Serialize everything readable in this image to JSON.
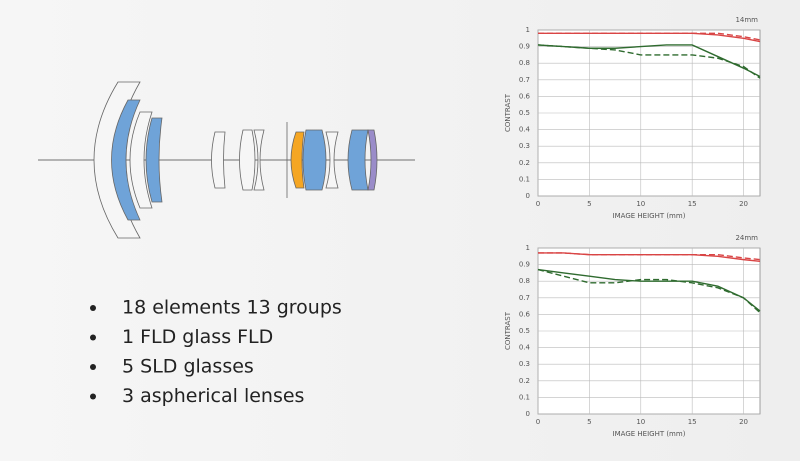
{
  "chart_data": [
    {
      "type": "line",
      "title": "14mm",
      "x_label": "IMAGE HEIGHT (mm)",
      "y_label": "CONTRAST",
      "x": [
        0,
        2.5,
        5,
        7.5,
        10,
        12.5,
        15,
        17.5,
        20,
        21.6
      ],
      "series": [
        {
          "color": "#d94545",
          "dashed": false,
          "values": [
            0.98,
            0.98,
            0.98,
            0.98,
            0.98,
            0.98,
            0.98,
            0.97,
            0.95,
            0.93
          ]
        },
        {
          "color": "#d94545",
          "dashed": true,
          "values": [
            0.98,
            0.98,
            0.98,
            0.98,
            0.98,
            0.98,
            0.98,
            0.98,
            0.96,
            0.94
          ]
        },
        {
          "color": "#2f6b2f",
          "dashed": false,
          "values": [
            0.91,
            0.9,
            0.89,
            0.89,
            0.9,
            0.91,
            0.91,
            0.84,
            0.77,
            0.72
          ]
        },
        {
          "color": "#2f6b2f",
          "dashed": true,
          "values": [
            0.91,
            0.9,
            0.89,
            0.88,
            0.85,
            0.85,
            0.85,
            0.83,
            0.78,
            0.71
          ]
        }
      ],
      "xlim": [
        0,
        21.6
      ],
      "ylim": [
        0,
        1
      ],
      "xticks": [
        0,
        5,
        10,
        15,
        20
      ],
      "yticks": [
        0,
        0.1,
        0.2,
        0.3,
        0.4,
        0.5,
        0.6,
        0.7,
        0.8,
        0.9,
        1
      ],
      "grid": true
    },
    {
      "type": "line",
      "title": "24mm",
      "x_label": "IMAGE HEIGHT (mm)",
      "y_label": "CONTRAST",
      "x": [
        0,
        2.5,
        5,
        7.5,
        10,
        12.5,
        15,
        17.5,
        20,
        21.6
      ],
      "series": [
        {
          "color": "#d94545",
          "dashed": false,
          "values": [
            0.97,
            0.97,
            0.96,
            0.96,
            0.96,
            0.96,
            0.96,
            0.95,
            0.93,
            0.92
          ]
        },
        {
          "color": "#d94545",
          "dashed": true,
          "values": [
            0.97,
            0.97,
            0.96,
            0.96,
            0.96,
            0.96,
            0.96,
            0.96,
            0.94,
            0.93
          ]
        },
        {
          "color": "#2f6b2f",
          "dashed": false,
          "values": [
            0.87,
            0.85,
            0.83,
            0.81,
            0.8,
            0.8,
            0.8,
            0.77,
            0.7,
            0.62
          ]
        },
        {
          "color": "#2f6b2f",
          "dashed": true,
          "values": [
            0.87,
            0.83,
            0.79,
            0.79,
            0.81,
            0.81,
            0.79,
            0.76,
            0.7,
            0.61
          ]
        }
      ],
      "xlim": [
        0,
        21.6
      ],
      "ylim": [
        0,
        1
      ],
      "xticks": [
        0,
        5,
        10,
        15,
        20
      ],
      "yticks": [
        0,
        0.1,
        0.2,
        0.3,
        0.4,
        0.5,
        0.6,
        0.7,
        0.8,
        0.9,
        1
      ],
      "grid": true
    }
  ],
  "bullets": [
    "18 elements 13 groups",
    "1 FLD glass FLD",
    "5 SLD glasses",
    "3 aspherical lenses"
  ]
}
